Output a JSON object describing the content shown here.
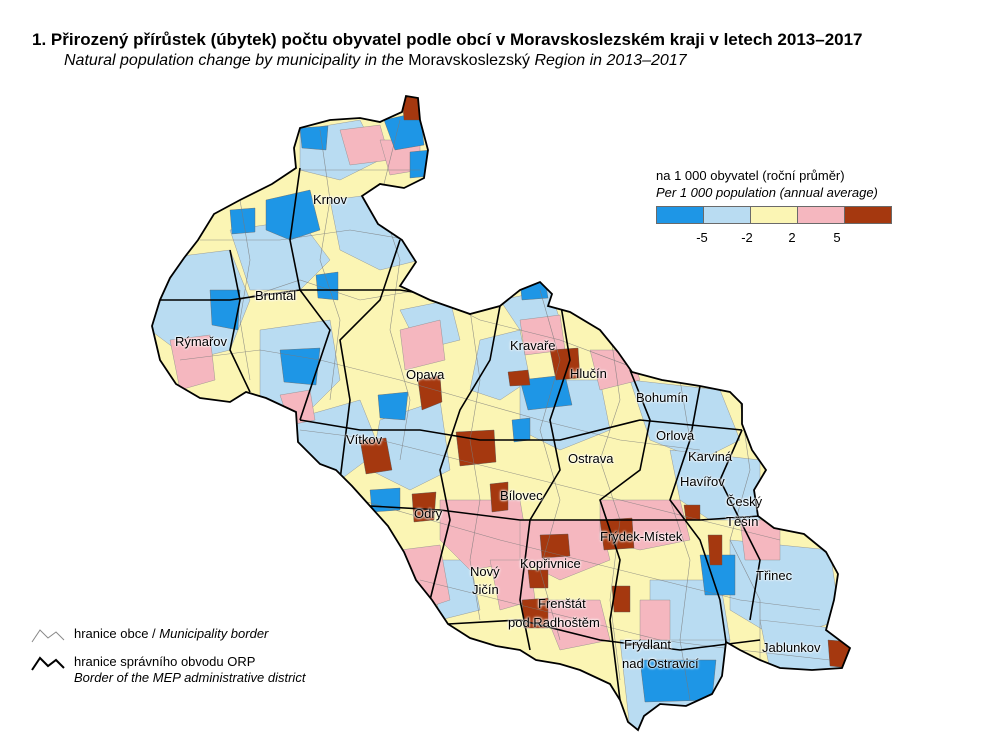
{
  "title": "1. Přirozený přírůstek (úbytek) počtu obyvatel podle obcí v Moravskoslezském kraji v letech 2013–2017",
  "subtitle": {
    "part1": "Natural population change by municipality in the ",
    "part2": "Moravskoslezský",
    "part3": " Region in 2013–2017"
  },
  "legend": {
    "line1": "na 1 000 obyvatel (roční průměr)",
    "line2": "Per 1 000 population (annual average)",
    "classes": [
      {
        "color": "#1e96e6",
        "label": "< -5"
      },
      {
        "color": "#b9dcf2",
        "label": "-5 – -2"
      },
      {
        "color": "#fbf5b4",
        "label": "-2 – 2"
      },
      {
        "color": "#f5b7bf",
        "label": "2 – 5"
      },
      {
        "color": "#a5380f",
        "label": "> 5"
      }
    ],
    "ticks": [
      "-5",
      "-2",
      "2",
      "5"
    ]
  },
  "towns": {
    "krnov": "Krnov",
    "bruntal": "Bruntál",
    "rymarov": "Rýmařov",
    "opava": "Opava",
    "kravare": "Kravaře",
    "hlucin": "Hlučín",
    "bohumin": "Bohumín",
    "orlova": "Orlová",
    "karvina": "Karviná",
    "havirov": "Havířov",
    "ostrava": "Ostrava",
    "vitkov": "Vítkov",
    "bilovec": "Bílovec",
    "odry": "Odry",
    "cesky_tesin_1": "Český",
    "cesky_tesin_2": "Těšín",
    "frydek": "Frýdek-Místek",
    "koprivnice": "Kopřivnice",
    "novy_jicin_1": "Nový",
    "novy_jicin_2": "Jičín",
    "trinec": "Třinec",
    "frenstat_1": "Frenštát",
    "frenstat_2": "pod Radhoštěm",
    "frydlant_1": "Frýdlant",
    "frydlant_2": "nad Ostravicí",
    "jablunkov": "Jablunkov"
  },
  "border_legend": {
    "municipality": {
      "cz": "hranice obce / ",
      "en": "Municipality border"
    },
    "mep": {
      "cz": "hranice správního obvodu ORP",
      "en": "Border of the MEP administrative district"
    }
  },
  "colors": {
    "very_low": "#1e96e6",
    "low": "#b9dcf2",
    "middle": "#fbf5b4",
    "high": "#f5b7bf",
    "very_high": "#a5380f"
  }
}
